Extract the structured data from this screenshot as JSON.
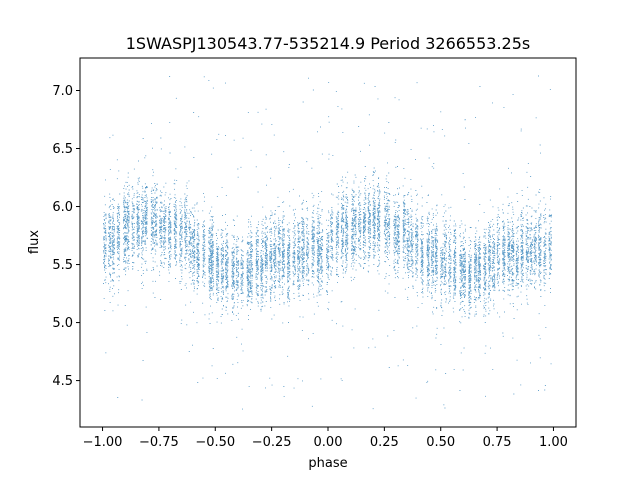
{
  "chart_data": {
    "type": "scatter",
    "title": "1SWASPJ130543.77-535214.9 Period 3266553.25s",
    "xlabel": "phase",
    "ylabel": "flux",
    "xlim": [
      -1.1,
      1.1
    ],
    "ylim": [
      4.1,
      7.28
    ],
    "x_ticks": [
      -1.0,
      -0.75,
      -0.5,
      -0.25,
      0.0,
      0.25,
      0.5,
      0.75,
      1.0
    ],
    "x_tick_labels": [
      "−1.00",
      "−0.75",
      "−0.50",
      "−0.25",
      "0.00",
      "0.25",
      "0.50",
      "0.75",
      "1.00"
    ],
    "y_ticks": [
      4.5,
      5.0,
      5.5,
      6.0,
      6.5,
      7.0
    ],
    "y_tick_labels": [
      "4.5",
      "5.0",
      "5.5",
      "6.0",
      "6.5",
      "7.0"
    ],
    "grid": false,
    "legend": "none",
    "point_color": "#1f77b4",
    "series": [
      {
        "x_range": [
          -1.0,
          1.0
        ],
        "profile_phase": [
          0.0,
          0.05,
          0.1,
          0.15,
          0.2,
          0.25,
          0.3,
          0.35,
          0.4,
          0.45,
          0.5,
          0.55,
          0.6,
          0.65,
          0.7,
          0.75,
          0.8,
          0.85,
          0.9,
          0.95,
          1.0
        ],
        "profile_flux_median": [
          5.65,
          5.72,
          5.78,
          5.85,
          5.88,
          5.85,
          5.8,
          5.75,
          5.68,
          5.6,
          5.52,
          5.45,
          5.42,
          5.45,
          5.5,
          5.55,
          5.58,
          5.6,
          5.62,
          5.63,
          5.65
        ],
        "flux_spread": 0.3,
        "flux_min": 4.25,
        "flux_max": 7.15
      }
    ]
  }
}
